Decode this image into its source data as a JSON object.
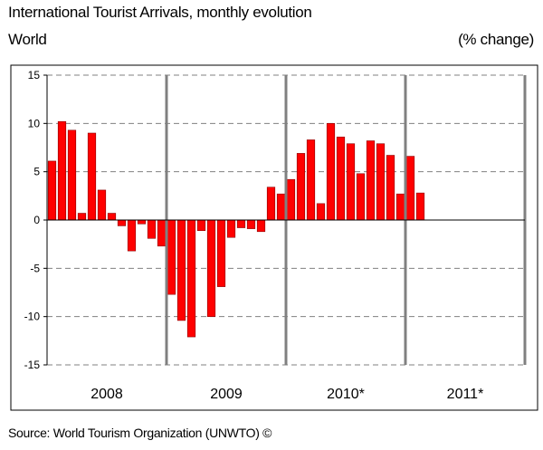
{
  "title": "International Tourist Arrivals, monthly evolution",
  "subtitle": "World",
  "unit": "(% change)",
  "source": "Source: World Tourism Organization (UNWTO) ©",
  "colors": {
    "bar": "#ff0000",
    "bar_edge": "#8b0000",
    "year_line": "#808080",
    "grid": "#808080"
  },
  "chart_data": {
    "type": "bar",
    "title": "International Tourist Arrivals, monthly evolution",
    "subtitle": "World",
    "ylabel": "(% change)",
    "ylim": [
      -15,
      15
    ],
    "yticks": [
      15,
      10,
      5,
      0,
      -5,
      -10,
      -15
    ],
    "grid": "horizontal dashed",
    "groups": [
      "2008",
      "2009",
      "2010*",
      "2011*"
    ],
    "months_per_group": 12,
    "values": [
      6.1,
      10.2,
      9.3,
      0.7,
      9.0,
      3.1,
      0.7,
      -0.6,
      -3.2,
      -0.4,
      -1.9,
      -2.7,
      -7.7,
      -10.4,
      -12.1,
      -1.1,
      -10.0,
      -6.9,
      -1.8,
      -0.8,
      -0.9,
      -1.2,
      3.4,
      2.7,
      4.2,
      6.9,
      8.3,
      1.7,
      10.0,
      8.6,
      7.9,
      4.8,
      8.2,
      7.9,
      6.7,
      2.7,
      6.6,
      2.8
    ]
  }
}
